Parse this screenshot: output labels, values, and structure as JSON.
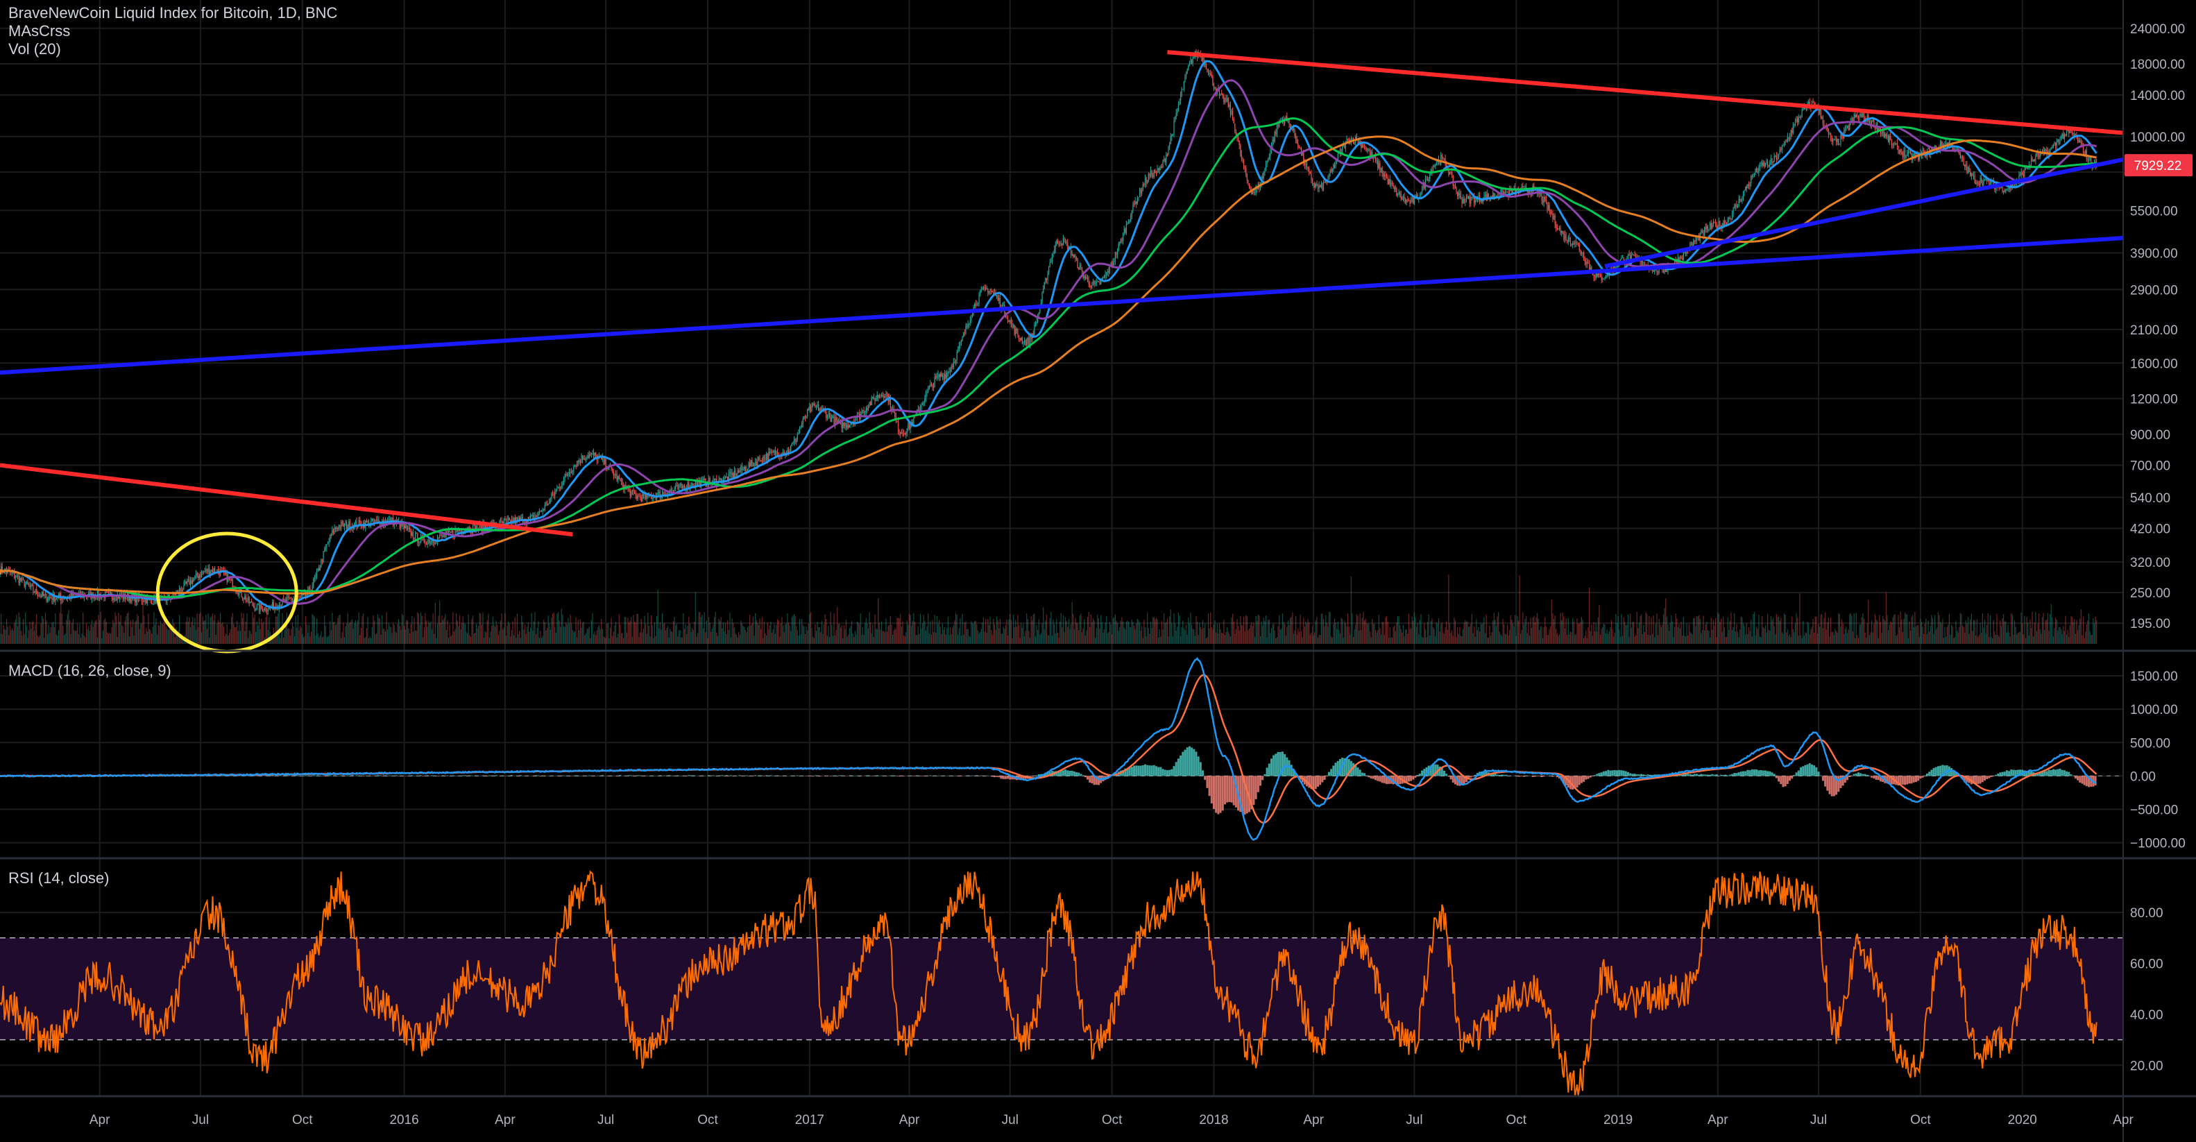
{
  "header": {
    "symbol_title": "BraveNewCoin Liquid Index for Bitcoin, 1D, BNC",
    "indicator_1": "MAsCrss",
    "indicator_2": "Vol (20)"
  },
  "last_price": {
    "label": "7929.22",
    "value": 7929.22,
    "color": "#f23645"
  },
  "colors": {
    "background": "#000000",
    "grid": "#1c1c1c",
    "candle_up": "#26a69a",
    "candle_down": "#ef5350",
    "ma_fast": "#2196f3",
    "ma_mid": "#8e44ad",
    "ma_slow": "#00c853",
    "ma_long": "#e67e22",
    "trend_red": "#ff2a2a",
    "trend_blue": "#1a1aff",
    "highlight_circle": "#ffeb3b",
    "rsi_line": "#ff6d00",
    "rsi_band": "#1e0b2e",
    "macd_line": "#2196f3",
    "signal_line": "#ff7043"
  },
  "chart_data": [
    {
      "type": "line",
      "pane": "price",
      "scale": "log",
      "y_ticks": [
        24000,
        18000,
        14000,
        10000,
        7500,
        5500,
        3900,
        2900,
        2100,
        1600,
        1200,
        900,
        700,
        540,
        420,
        320,
        250,
        195
      ],
      "y_tick_labels": [
        "24000.00",
        "18000.00",
        "14000.00",
        "10000.00",
        "",
        "5500.00",
        "3900.00",
        "2900.00",
        "2100.00",
        "1600.00",
        "1200.00",
        "900.00",
        "700.00",
        "540.00",
        "420.00",
        "320.00",
        "250.00",
        "195.00"
      ],
      "ylim": [
        165,
        25500
      ],
      "x_ticks": [
        "Apr",
        "Jul",
        "Oct",
        "2016",
        "Apr",
        "Jul",
        "Oct",
        "2017",
        "Apr",
        "Jul",
        "Oct",
        "2018",
        "Apr",
        "Jul",
        "Oct",
        "2019",
        "Apr",
        "Jul",
        "Oct",
        "2020",
        "Apr"
      ],
      "x_dates": [
        "2015-04-01",
        "2015-07-01",
        "2015-10-01",
        "2016-01-01",
        "2016-04-01",
        "2016-07-01",
        "2016-10-01",
        "2017-01-01",
        "2017-04-01",
        "2017-07-01",
        "2017-10-01",
        "2018-01-01",
        "2018-04-01",
        "2018-07-01",
        "2018-10-01",
        "2019-01-01",
        "2019-04-01",
        "2019-07-01",
        "2019-10-01",
        "2020-01-01",
        "2020-04-01"
      ],
      "xlim": [
        "2015-01-01",
        "2020-04-01"
      ],
      "price_anchors": [
        {
          "date": "2015-01-01",
          "value": 300
        },
        {
          "date": "2015-02-15",
          "value": 240
        },
        {
          "date": "2015-04-01",
          "value": 245
        },
        {
          "date": "2015-05-25",
          "value": 235
        },
        {
          "date": "2015-07-12",
          "value": 300
        },
        {
          "date": "2015-08-25",
          "value": 220
        },
        {
          "date": "2015-10-01",
          "value": 240
        },
        {
          "date": "2015-11-04",
          "value": 430
        },
        {
          "date": "2015-12-20",
          "value": 445
        },
        {
          "date": "2016-01-20",
          "value": 380
        },
        {
          "date": "2016-03-01",
          "value": 420
        },
        {
          "date": "2016-04-20",
          "value": 450
        },
        {
          "date": "2016-06-17",
          "value": 760
        },
        {
          "date": "2016-08-02",
          "value": 540
        },
        {
          "date": "2016-10-01",
          "value": 610
        },
        {
          "date": "2016-12-10",
          "value": 780
        },
        {
          "date": "2017-01-05",
          "value": 1120
        },
        {
          "date": "2017-02-01",
          "value": 970
        },
        {
          "date": "2017-03-10",
          "value": 1250
        },
        {
          "date": "2017-03-25",
          "value": 920
        },
        {
          "date": "2017-05-01",
          "value": 1450
        },
        {
          "date": "2017-06-10",
          "value": 2900
        },
        {
          "date": "2017-07-16",
          "value": 1900
        },
        {
          "date": "2017-08-15",
          "value": 4300
        },
        {
          "date": "2017-09-15",
          "value": 3000
        },
        {
          "date": "2017-11-10",
          "value": 7500
        },
        {
          "date": "2017-12-17",
          "value": 19500
        },
        {
          "date": "2018-01-10",
          "value": 13500
        },
        {
          "date": "2018-02-06",
          "value": 6400
        },
        {
          "date": "2018-03-05",
          "value": 11500
        },
        {
          "date": "2018-04-06",
          "value": 6600
        },
        {
          "date": "2018-05-05",
          "value": 9800
        },
        {
          "date": "2018-06-28",
          "value": 5900
        },
        {
          "date": "2018-07-25",
          "value": 8300
        },
        {
          "date": "2018-08-14",
          "value": 6000
        },
        {
          "date": "2018-10-15",
          "value": 6500
        },
        {
          "date": "2018-11-20",
          "value": 4300
        },
        {
          "date": "2018-12-15",
          "value": 3200
        },
        {
          "date": "2019-01-10",
          "value": 3750
        },
        {
          "date": "2019-02-08",
          "value": 3400
        },
        {
          "date": "2019-04-02",
          "value": 4900
        },
        {
          "date": "2019-05-15",
          "value": 8000
        },
        {
          "date": "2019-06-26",
          "value": 13000
        },
        {
          "date": "2019-07-16",
          "value": 9500
        },
        {
          "date": "2019-08-06",
          "value": 11800
        },
        {
          "date": "2019-09-24",
          "value": 8500
        },
        {
          "date": "2019-10-26",
          "value": 9400
        },
        {
          "date": "2019-11-22",
          "value": 7000
        },
        {
          "date": "2019-12-17",
          "value": 6600
        },
        {
          "date": "2020-01-20",
          "value": 8700
        },
        {
          "date": "2020-02-12",
          "value": 10300
        },
        {
          "date": "2020-03-08",
          "value": 7929
        }
      ],
      "trendlines": [
        {
          "color": "#ff2a2a",
          "points": [
            {
              "date": "2015-01-01",
              "value": 700
            },
            {
              "date": "2016-06-01",
              "value": 400
            }
          ]
        },
        {
          "color": "#ff2a2a",
          "points": [
            {
              "date": "2017-11-20",
              "value": 19800
            },
            {
              "date": "2020-04-01",
              "value": 10300
            }
          ]
        },
        {
          "color": "#1a1aff",
          "points": [
            {
              "date": "2015-01-01",
              "value": 1480
            },
            {
              "date": "2020-04-01",
              "value": 4400
            }
          ]
        },
        {
          "color": "#1a1aff",
          "points": [
            {
              "date": "2018-12-20",
              "value": 3500
            },
            {
              "date": "2020-04-01",
              "value": 8300
            }
          ]
        }
      ],
      "highlight": {
        "type": "circle",
        "center_date": "2015-07-25",
        "center_value": 250,
        "color": "#ffeb3b"
      }
    },
    {
      "type": "line",
      "pane": "macd",
      "title": "MACD (16, 26, close, 9)",
      "y_ticks": [
        1500,
        1000,
        500,
        0,
        -500,
        -1000
      ],
      "y_tick_labels": [
        "1500.00",
        "1000.00",
        "500.00",
        "0.00",
        "−500.00",
        "−1000.00"
      ],
      "ylim": [
        -1150,
        1750
      ],
      "macd_anchors": [
        {
          "date": "2015-01-01",
          "value": 0
        },
        {
          "date": "2017-06-10",
          "value": 120
        },
        {
          "date": "2017-07-16",
          "value": -60
        },
        {
          "date": "2017-09-01",
          "value": 260
        },
        {
          "date": "2017-09-20",
          "value": -50
        },
        {
          "date": "2017-11-20",
          "value": 700
        },
        {
          "date": "2017-12-17",
          "value": 1750
        },
        {
          "date": "2018-01-10",
          "value": 300
        },
        {
          "date": "2018-02-06",
          "value": -950
        },
        {
          "date": "2018-03-08",
          "value": 150
        },
        {
          "date": "2018-04-06",
          "value": -450
        },
        {
          "date": "2018-05-06",
          "value": 320
        },
        {
          "date": "2018-06-28",
          "value": -200
        },
        {
          "date": "2018-07-25",
          "value": 250
        },
        {
          "date": "2018-08-14",
          "value": -130
        },
        {
          "date": "2018-09-05",
          "value": 80
        },
        {
          "date": "2018-11-05",
          "value": 30
        },
        {
          "date": "2018-11-25",
          "value": -380
        },
        {
          "date": "2019-01-10",
          "value": -40
        },
        {
          "date": "2019-04-05",
          "value": 120
        },
        {
          "date": "2019-05-20",
          "value": 450
        },
        {
          "date": "2019-06-01",
          "value": 150
        },
        {
          "date": "2019-06-28",
          "value": 650
        },
        {
          "date": "2019-07-18",
          "value": -60
        },
        {
          "date": "2019-08-08",
          "value": 150
        },
        {
          "date": "2019-09-28",
          "value": -380
        },
        {
          "date": "2019-10-28",
          "value": 80
        },
        {
          "date": "2019-11-25",
          "value": -280
        },
        {
          "date": "2020-01-10",
          "value": 80
        },
        {
          "date": "2020-02-10",
          "value": 330
        },
        {
          "date": "2020-03-08",
          "value": -100
        }
      ]
    },
    {
      "type": "line",
      "pane": "rsi",
      "title": "RSI (14, close)",
      "y_ticks": [
        80,
        60,
        40,
        20
      ],
      "y_tick_labels": [
        "80.00",
        "60.00",
        "40.00",
        "20.00"
      ],
      "ylim": [
        10,
        98
      ],
      "bands": [
        70,
        30
      ],
      "rsi_anchors": [
        {
          "date": "2015-01-01",
          "value": 45
        },
        {
          "date": "2015-02-15",
          "value": 30
        },
        {
          "date": "2015-04-01",
          "value": 55
        },
        {
          "date": "2015-05-25",
          "value": 35
        },
        {
          "date": "2015-07-12",
          "value": 80
        },
        {
          "date": "2015-08-25",
          "value": 22
        },
        {
          "date": "2015-10-01",
          "value": 55
        },
        {
          "date": "2015-11-04",
          "value": 90
        },
        {
          "date": "2015-12-01",
          "value": 45
        },
        {
          "date": "2016-01-20",
          "value": 30
        },
        {
          "date": "2016-03-01",
          "value": 55
        },
        {
          "date": "2016-04-20",
          "value": 45
        },
        {
          "date": "2016-06-17",
          "value": 92
        },
        {
          "date": "2016-08-02",
          "value": 25
        },
        {
          "date": "2016-10-01",
          "value": 60
        },
        {
          "date": "2016-12-10",
          "value": 75
        },
        {
          "date": "2017-01-05",
          "value": 88
        },
        {
          "date": "2017-01-12",
          "value": 35
        },
        {
          "date": "2017-03-10",
          "value": 75
        },
        {
          "date": "2017-03-25",
          "value": 30
        },
        {
          "date": "2017-05-25",
          "value": 92
        },
        {
          "date": "2017-07-16",
          "value": 30
        },
        {
          "date": "2017-08-15",
          "value": 82
        },
        {
          "date": "2017-09-15",
          "value": 28
        },
        {
          "date": "2017-11-10",
          "value": 80
        },
        {
          "date": "2017-12-17",
          "value": 93
        },
        {
          "date": "2018-01-10",
          "value": 45
        },
        {
          "date": "2018-02-06",
          "value": 25
        },
        {
          "date": "2018-03-05",
          "value": 60
        },
        {
          "date": "2018-04-06",
          "value": 28
        },
        {
          "date": "2018-05-05",
          "value": 70
        },
        {
          "date": "2018-06-28",
          "value": 28
        },
        {
          "date": "2018-07-25",
          "value": 78
        },
        {
          "date": "2018-08-14",
          "value": 30
        },
        {
          "date": "2018-10-15",
          "value": 50
        },
        {
          "date": "2018-11-25",
          "value": 12
        },
        {
          "date": "2018-12-20",
          "value": 55
        },
        {
          "date": "2019-01-10",
          "value": 45
        },
        {
          "date": "2019-03-05",
          "value": 50
        },
        {
          "date": "2019-04-02",
          "value": 88
        },
        {
          "date": "2019-05-15",
          "value": 90
        },
        {
          "date": "2019-06-26",
          "value": 85
        },
        {
          "date": "2019-07-16",
          "value": 35
        },
        {
          "date": "2019-08-06",
          "value": 65
        },
        {
          "date": "2019-09-24",
          "value": 18
        },
        {
          "date": "2019-10-26",
          "value": 70
        },
        {
          "date": "2019-11-22",
          "value": 25
        },
        {
          "date": "2019-12-17",
          "value": 30
        },
        {
          "date": "2020-01-20",
          "value": 72
        },
        {
          "date": "2020-02-12",
          "value": 72
        },
        {
          "date": "2020-03-08",
          "value": 32
        }
      ]
    }
  ]
}
